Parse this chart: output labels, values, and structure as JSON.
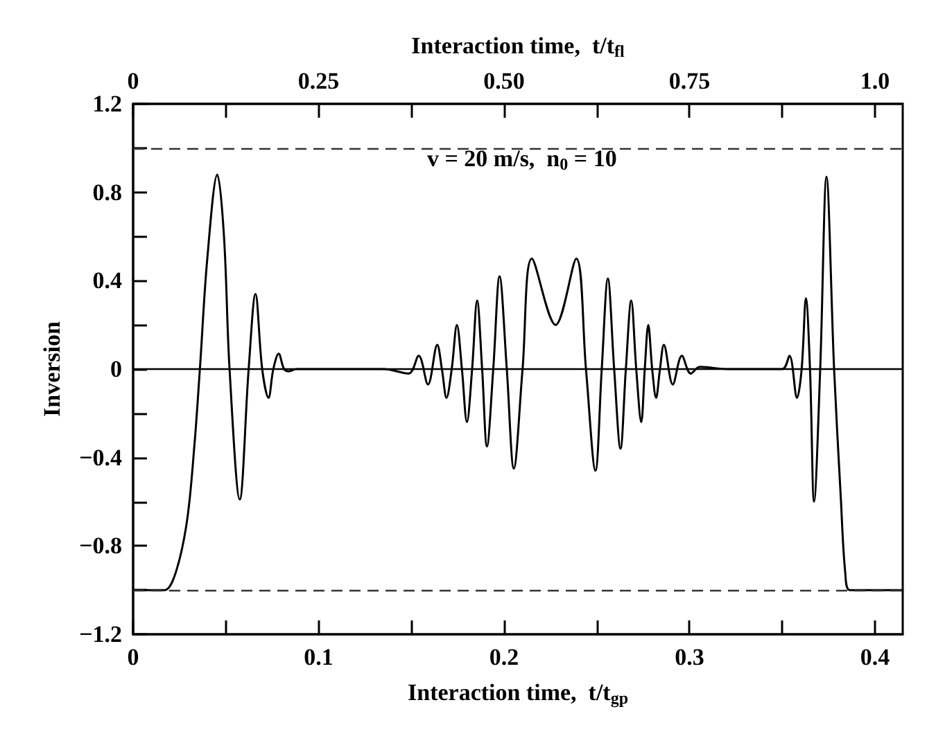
{
  "chart_data": {
    "type": "line",
    "xlabel": "Interaction time,  t/t$_{gp}$",
    "x2label": "Interaction time,  t/t$_{fl}$",
    "ylabel": "Inversion",
    "annotations": [
      "v = 20 m/s,  n$_{0}$ = 10"
    ],
    "xlim": [
      0,
      0.415
    ],
    "x2lim": [
      0,
      1.0375
    ],
    "ylim": [
      -1.2,
      1.2
    ],
    "xticks": [
      0,
      {
        "value": 0.05,
        "label": null
      },
      0.1,
      {
        "value": 0.15,
        "label": null
      },
      0.2,
      {
        "value": 0.25,
        "label": null
      },
      0.3,
      {
        "value": 0.35,
        "label": null
      },
      0.4
    ],
    "x2ticks": [
      0,
      {
        "value": 0.125,
        "label": null
      },
      0.25,
      {
        "value": 0.375,
        "label": null
      },
      {
        "value": 0.5,
        "label": "0.50"
      },
      {
        "value": 0.625,
        "label": null
      },
      0.75,
      {
        "value": 0.875,
        "label": null
      },
      {
        "value": 1,
        "label": "1.0"
      }
    ],
    "yticks": [
      {
        "value": -1.2,
        "label": "−1.2"
      },
      {
        "value": -1,
        "label": null
      },
      {
        "value": -0.8,
        "label": "−0.8"
      },
      {
        "value": -0.6,
        "label": null
      },
      {
        "value": -0.4,
        "label": "−0.4"
      },
      {
        "value": -0.2,
        "label": null
      },
      0,
      {
        "value": 0.2,
        "label": null
      },
      0.4,
      {
        "value": 0.6,
        "label": null
      },
      0.8,
      {
        "value": 1,
        "label": null
      },
      1.2
    ],
    "x": [
      0,
      0.01,
      0.017,
      0.023,
      0.029,
      0.033,
      0.036,
      0.04,
      0.0454,
      0.049,
      0.052,
      0.0575,
      0.0623,
      0.066,
      0.0696,
      0.073,
      0.0756,
      0.0785,
      0.0814,
      0.084,
      0.088,
      0.1,
      0.12,
      0.135,
      0.1486,
      0.154,
      0.159,
      0.164,
      0.1665,
      0.169,
      0.1718,
      0.1746,
      0.1773,
      0.18,
      0.1828,
      0.1855,
      0.1882,
      0.1908,
      0.1942,
      0.1976,
      0.2015,
      0.2053,
      0.21,
      0.215,
      0.2278,
      0.239,
      0.2442,
      0.2493,
      0.2527,
      0.256,
      0.2594,
      0.2628,
      0.2657,
      0.2686,
      0.2713,
      0.274,
      0.2759,
      0.2778,
      0.2799,
      0.282,
      0.2841,
      0.2862,
      0.291,
      0.2959,
      0.3007,
      0.3056,
      0.321,
      0.35,
      0.3539,
      0.358,
      0.3605,
      0.3628,
      0.365,
      0.3672,
      0.3705,
      0.3739,
      0.378,
      0.3816,
      0.384,
      0.3865,
      0.4,
      0.415
    ],
    "series": [
      {
        "color": "#000000",
        "values": [
          -1,
          -1,
          -1,
          -0.92,
          -0.69,
          -0.35,
          0,
          0.5,
          0.88,
          0.6,
          0,
          -0.59,
          0,
          0.34,
          0,
          -0.13,
          0,
          0.07,
          0,
          -0.01,
          0,
          0,
          0,
          0,
          -0.02,
          0.06,
          -0.07,
          0.11,
          0,
          -0.13,
          0,
          0.2,
          0,
          -0.24,
          0,
          0.31,
          0,
          -0.35,
          0,
          0.42,
          0,
          -0.45,
          0,
          0.5,
          0.2,
          0.5,
          0,
          -0.46,
          0,
          0.41,
          0,
          -0.36,
          0,
          0.31,
          0,
          -0.24,
          0,
          0.2,
          0,
          -0.13,
          0,
          0.11,
          -0.07,
          0.06,
          -0.02,
          0.01,
          0,
          0,
          0.06,
          -0.13,
          0,
          0.32,
          0,
          -0.6,
          0,
          0.87,
          0,
          -0.58,
          -0.92,
          -1,
          -1,
          -1
        ]
      }
    ],
    "ref_lines": [
      {
        "axis": "y",
        "value": 1,
        "color": "#333333",
        "line_style": "dashed"
      },
      {
        "axis": "y",
        "value": -1,
        "color": "#333333",
        "line_style": "dashed"
      },
      {
        "axis": "y",
        "value": 0,
        "color": "#000000",
        "line_style": "solid"
      }
    ],
    "marker": "none",
    "line_style": "solid",
    "grid": false
  }
}
